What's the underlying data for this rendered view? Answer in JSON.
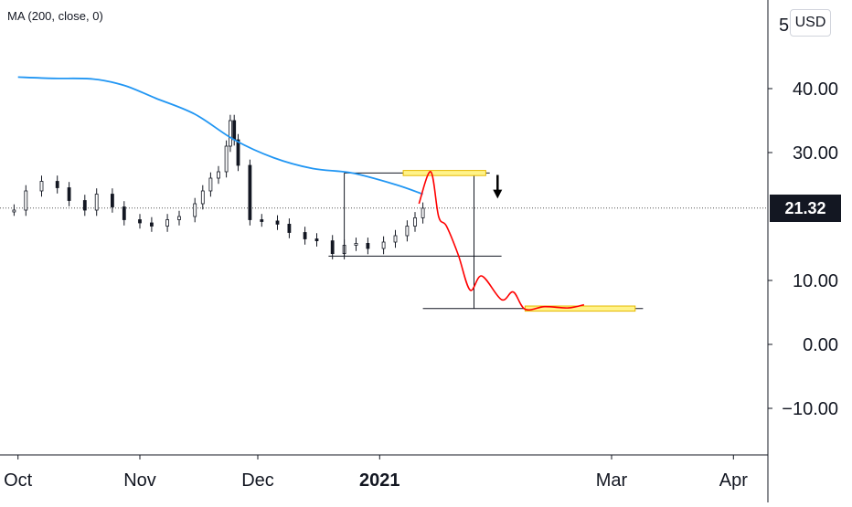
{
  "indicator": {
    "label": "MA (200, close, 0)"
  },
  "currency": "USD",
  "last_price": "21.32",
  "top_axis_label_partial": "5",
  "colors": {
    "ma_line": "#2196f3",
    "projection": "#ff0000",
    "zone_fill": "#fff38a",
    "zone_border": "#e6b800",
    "candle": "#131722"
  },
  "chart_data": {
    "type": "line",
    "title": "",
    "xlabel": "",
    "ylabel": "",
    "ylim": [
      -19,
      54
    ],
    "y_ticks": [
      "−10.00",
      "0.00",
      "10.00",
      "30.00",
      "40.00"
    ],
    "x_ticks": [
      "Oct",
      "Nov",
      "Dec",
      "2021",
      "Mar",
      "Apr"
    ],
    "grid": false,
    "series": [
      {
        "kind": "moving-average",
        "x": [
          "2020-10-01",
          "2020-10-10",
          "2020-10-20",
          "2020-10-28",
          "2020-11-05",
          "2020-11-15",
          "2020-11-25",
          "2020-12-05",
          "2020-12-15",
          "2020-12-25",
          "2021-01-05",
          "2021-01-12"
        ],
        "values": [
          41.8,
          41.6,
          41.5,
          40.5,
          38.5,
          36.0,
          32.0,
          29.2,
          27.5,
          26.8,
          25.0,
          23.5
        ]
      },
      {
        "kind": "price-projection",
        "x": [
          "2021-01-11",
          "2021-01-14",
          "2021-01-16",
          "2021-01-18",
          "2021-01-21",
          "2021-01-24",
          "2021-01-27",
          "2021-02-01",
          "2021-02-04",
          "2021-02-07",
          "2021-02-12",
          "2021-02-18",
          "2021-02-22"
        ],
        "values": [
          22.0,
          27.0,
          20.0,
          18.5,
          14.0,
          8.5,
          10.7,
          7.0,
          8.2,
          5.5,
          5.9,
          5.7,
          6.2
        ]
      }
    ],
    "candles": {
      "x": [
        "2020-09-30",
        "2020-10-03",
        "2020-10-07",
        "2020-10-11",
        "2020-10-14",
        "2020-10-18",
        "2020-10-21",
        "2020-10-25",
        "2020-10-28",
        "2020-11-01",
        "2020-11-04",
        "2020-11-08",
        "2020-11-11",
        "2020-11-15",
        "2020-11-17",
        "2020-11-19",
        "2020-11-21",
        "2020-11-23",
        "2020-11-24",
        "2020-11-25",
        "2020-11-26",
        "2020-11-29",
        "2020-12-02",
        "2020-12-06",
        "2020-12-09",
        "2020-12-13",
        "2020-12-16",
        "2020-12-20",
        "2020-12-23",
        "2020-12-26",
        "2020-12-29",
        "2021-01-02",
        "2021-01-05",
        "2021-01-08",
        "2021-01-10",
        "2021-01-12"
      ],
      "close": [
        21.0,
        24.0,
        25.5,
        24.5,
        22.5,
        21.0,
        23.5,
        21.5,
        19.5,
        19.0,
        18.5,
        19.5,
        20.0,
        22.0,
        24.0,
        26.0,
        27.0,
        31.0,
        35.0,
        32.0,
        28.0,
        19.5,
        19.3,
        18.8,
        17.5,
        16.5,
        16.2,
        14.2,
        15.5,
        15.8,
        15.0,
        16.0,
        17.0,
        18.5,
        19.8,
        21.3
      ]
    },
    "annotations": {
      "range_top": 26.8,
      "range_bottom": 13.8,
      "target_level": 5.6,
      "resistance_zone": [
        26.4,
        27.2
      ],
      "target_zone": [
        5.2,
        6.0
      ]
    }
  }
}
